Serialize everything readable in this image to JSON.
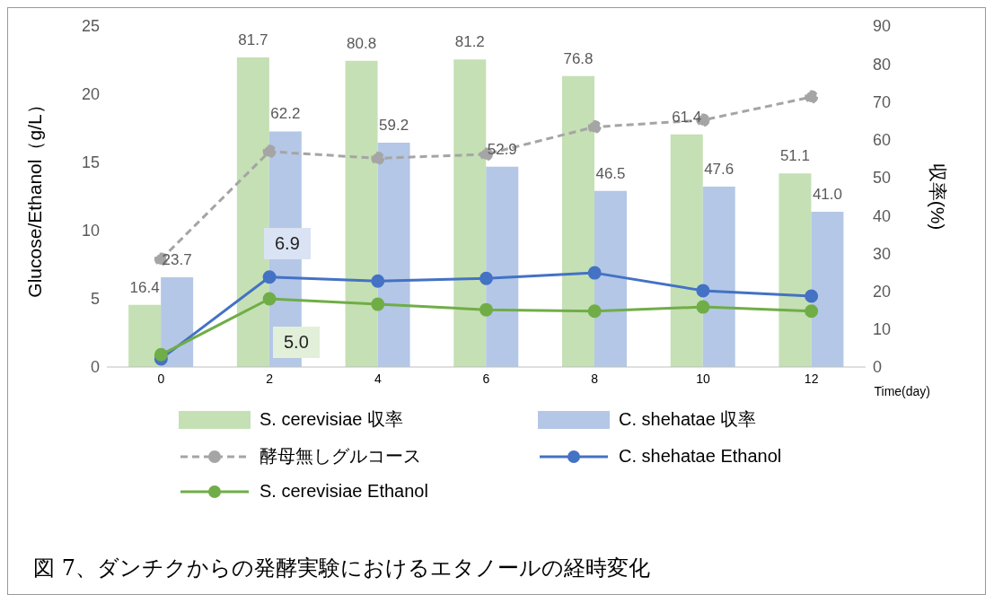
{
  "chart_data": {
    "type": "bar",
    "categories": [
      "0",
      "2",
      "4",
      "6",
      "8",
      "10",
      "12"
    ],
    "xlabel": "Time(day)",
    "ylabel": "Glucose/Ethanol（g/L）",
    "y2label": "収率(%)",
    "ylim": [
      0,
      25
    ],
    "yticks": [
      0,
      5,
      10,
      15,
      20,
      25
    ],
    "y2lim": [
      0,
      90
    ],
    "y2ticks": [
      0,
      10,
      20,
      30,
      40,
      50,
      60,
      70,
      80,
      90
    ],
    "grid": false,
    "legend": "bottom",
    "marker": "circle",
    "series": [
      {
        "name": "S. cerevisiae 収率",
        "axis": "y2",
        "color": "#c5e0b4",
        "values": [
          16.4,
          81.7,
          80.8,
          81.2,
          76.8,
          61.4,
          51.1
        ],
        "value_labels": [
          "16.4",
          "81.7",
          "80.8",
          "81.2",
          "76.8",
          "61.4",
          "51.1"
        ]
      },
      {
        "name": "C. shehatae 収率",
        "axis": "y2",
        "color": "#b4c7e7",
        "values": [
          23.7,
          62.2,
          59.2,
          52.9,
          46.5,
          47.6,
          41.0
        ],
        "value_labels": [
          "23.7",
          "62.2",
          "59.2",
          "52.9",
          "46.5",
          "47.6",
          "41.0"
        ]
      },
      {
        "name": "酵母無しグルコース",
        "type": "line",
        "axis": "y",
        "color": "#a5a5a5",
        "line_style": "dashed",
        "values": [
          7.9,
          15.8,
          15.3,
          15.6,
          17.6,
          18.1,
          19.8
        ]
      },
      {
        "name": "C. shehatae Ethanol",
        "type": "line",
        "axis": "y",
        "color": "#4472c4",
        "line_style": "solid",
        "values": [
          0.6,
          6.6,
          6.3,
          6.5,
          6.9,
          5.6,
          5.2
        ]
      },
      {
        "name": "S. cerevisiae Ethanol",
        "type": "line",
        "axis": "y",
        "color": "#70ad47",
        "line_style": "solid",
        "values": [
          0.9,
          5.0,
          4.6,
          4.2,
          4.1,
          4.4,
          4.1
        ]
      }
    ],
    "annotations": [
      "6.9",
      "5.0",
      "図 7、ダンチクからの発酵実験におけるエタノールの経時変化"
    ]
  }
}
